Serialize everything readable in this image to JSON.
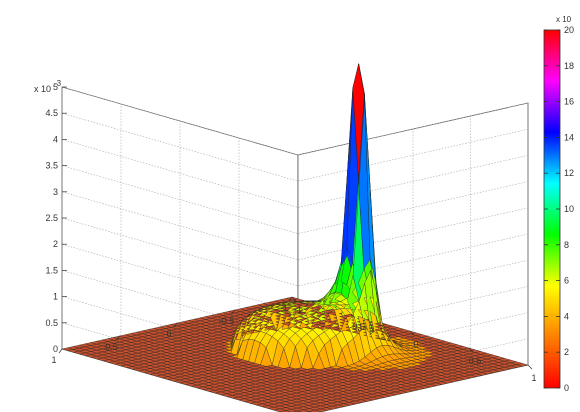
{
  "chart_data": {
    "type": "surface",
    "x_ticks": [
      "-1",
      "-0.5",
      "0",
      "0.5",
      "1"
    ],
    "y_ticks": [
      "-1",
      "-0.5",
      "0",
      "0.5",
      "1"
    ],
    "z_ticks": [
      "0",
      "0.5",
      "1",
      "1.5",
      "2",
      "2.5",
      "3",
      "3.5",
      "4",
      "4.5",
      "5"
    ],
    "z_multiplier": "x 10",
    "z_multiplier_exp": "-3",
    "zlim": [
      0,
      0.005
    ],
    "xlim": [
      -1,
      1
    ],
    "ylim": [
      -1,
      1
    ],
    "grid": true,
    "colorbar": {
      "position": "right",
      "multiplier": "x 10",
      "ticks": [
        "0",
        "2",
        "4",
        "6",
        "8",
        "10",
        "12",
        "14",
        "16",
        "18",
        "20"
      ],
      "range": [
        0,
        20
      ],
      "colormap": [
        "#ff0000",
        "#ff8000",
        "#ffff00",
        "#00ff00",
        "#00ffff",
        "#0000ff",
        "#ff00ff",
        "#ff0000"
      ]
    },
    "surface": {
      "flat_level": 0,
      "peak": {
        "x": -0.4,
        "y": 0.15,
        "height_note": "peak exceeds z range (clipped at top)"
      },
      "mound": {
        "x": -0.2,
        "y": -0.1,
        "peak_z": 0.0008
      }
    }
  }
}
